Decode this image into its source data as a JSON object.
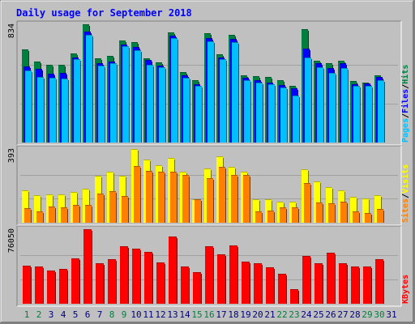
{
  "chart_data": {
    "type": "bar",
    "title": "Daily usage for September 2018",
    "colors": {
      "hits": "#008040",
      "files": "#0000ff",
      "pages": "#00c0ff",
      "visits": "#ffff00",
      "sites": "#ff8000",
      "kbytes": "#ff0000",
      "background": "#c0c0c0",
      "title": "#0000ff",
      "weekday_label": "#000080",
      "weekend_label": "#008040"
    },
    "categories": [
      "1",
      "2",
      "3",
      "4",
      "5",
      "6",
      "7",
      "8",
      "9",
      "10",
      "11",
      "12",
      "13",
      "14",
      "15",
      "16",
      "17",
      "18",
      "19",
      "20",
      "21",
      "22",
      "23",
      "24",
      "25",
      "26",
      "27",
      "28",
      "29",
      "30",
      "31"
    ],
    "weekend_days": [
      "1",
      "2",
      "8",
      "9",
      "15",
      "16",
      "22",
      "23",
      "29",
      "30"
    ],
    "panels": [
      {
        "id": "top",
        "max_label": "834",
        "ylim": [
          0,
          834
        ],
        "side_labels": [
          "Pages",
          "Files",
          "Hits"
        ],
        "series": [
          {
            "name": "Hits",
            "values": [
              654,
              567,
              547,
              547,
              626,
              834,
              590,
              608,
              720,
              706,
              593,
              562,
              778,
              495,
              439,
              772,
              620,
              760,
              474,
              466,
              460,
              438,
              397,
              798,
              577,
              556,
              574,
              429,
              422,
              474,
              0
            ]
          },
          {
            "name": "Files",
            "values": [
              534,
              515,
              483,
              488,
              600,
              782,
              560,
              571,
              693,
              672,
              580,
              538,
              755,
              471,
              410,
              734,
              596,
              732,
              454,
              438,
              420,
              404,
              378,
              662,
              560,
              523,
              556,
              409,
              413,
              460,
              0
            ]
          },
          {
            "name": "Pages",
            "values": [
              507,
              460,
              456,
              447,
              584,
              761,
              538,
              560,
              680,
              650,
              545,
              528,
              737,
              455,
              396,
              711,
              584,
              708,
              435,
              417,
              409,
              386,
              327,
              600,
              532,
              488,
              524,
              399,
              396,
              438,
              0
            ]
          }
        ]
      },
      {
        "id": "middle",
        "max_label": "393",
        "ylim": [
          0,
          393
        ],
        "side_labels": [
          "Sites",
          "Visits"
        ],
        "series": [
          {
            "name": "Visits",
            "values": [
              172,
              143,
              148,
              148,
              162,
              178,
              250,
              270,
              250,
              393,
              335,
              305,
              345,
              270,
              122,
              288,
              355,
              298,
              270,
              122,
              122,
              108,
              108,
              285,
              220,
              188,
              170,
              135,
              125,
              145,
              0
            ]
          },
          {
            "name": "Sites",
            "values": [
              75,
              55,
              85,
              80,
              92,
              92,
              155,
              165,
              140,
              300,
              275,
              270,
              272,
              255,
              122,
              235,
              295,
              255,
              255,
              55,
              60,
              80,
              80,
              210,
              105,
              100,
              110,
              55,
              50,
              70,
              0
            ]
          }
        ]
      },
      {
        "id": "bottom",
        "max_label": "76050",
        "ylim": [
          0,
          76050
        ],
        "side_labels": [
          "KBytes"
        ],
        "series": [
          {
            "name": "KBytes",
            "values": [
              38800,
              37800,
              33600,
              35500,
              45900,
              76050,
              40700,
              45100,
              58600,
              55600,
              52700,
              41800,
              68400,
              37800,
              31600,
              58600,
              50000,
              59400,
              42700,
              40800,
              36400,
              30500,
              14200,
              48200,
              40700,
              51600,
              40700,
              37800,
              37800,
              45400,
              0
            ]
          }
        ]
      }
    ]
  }
}
